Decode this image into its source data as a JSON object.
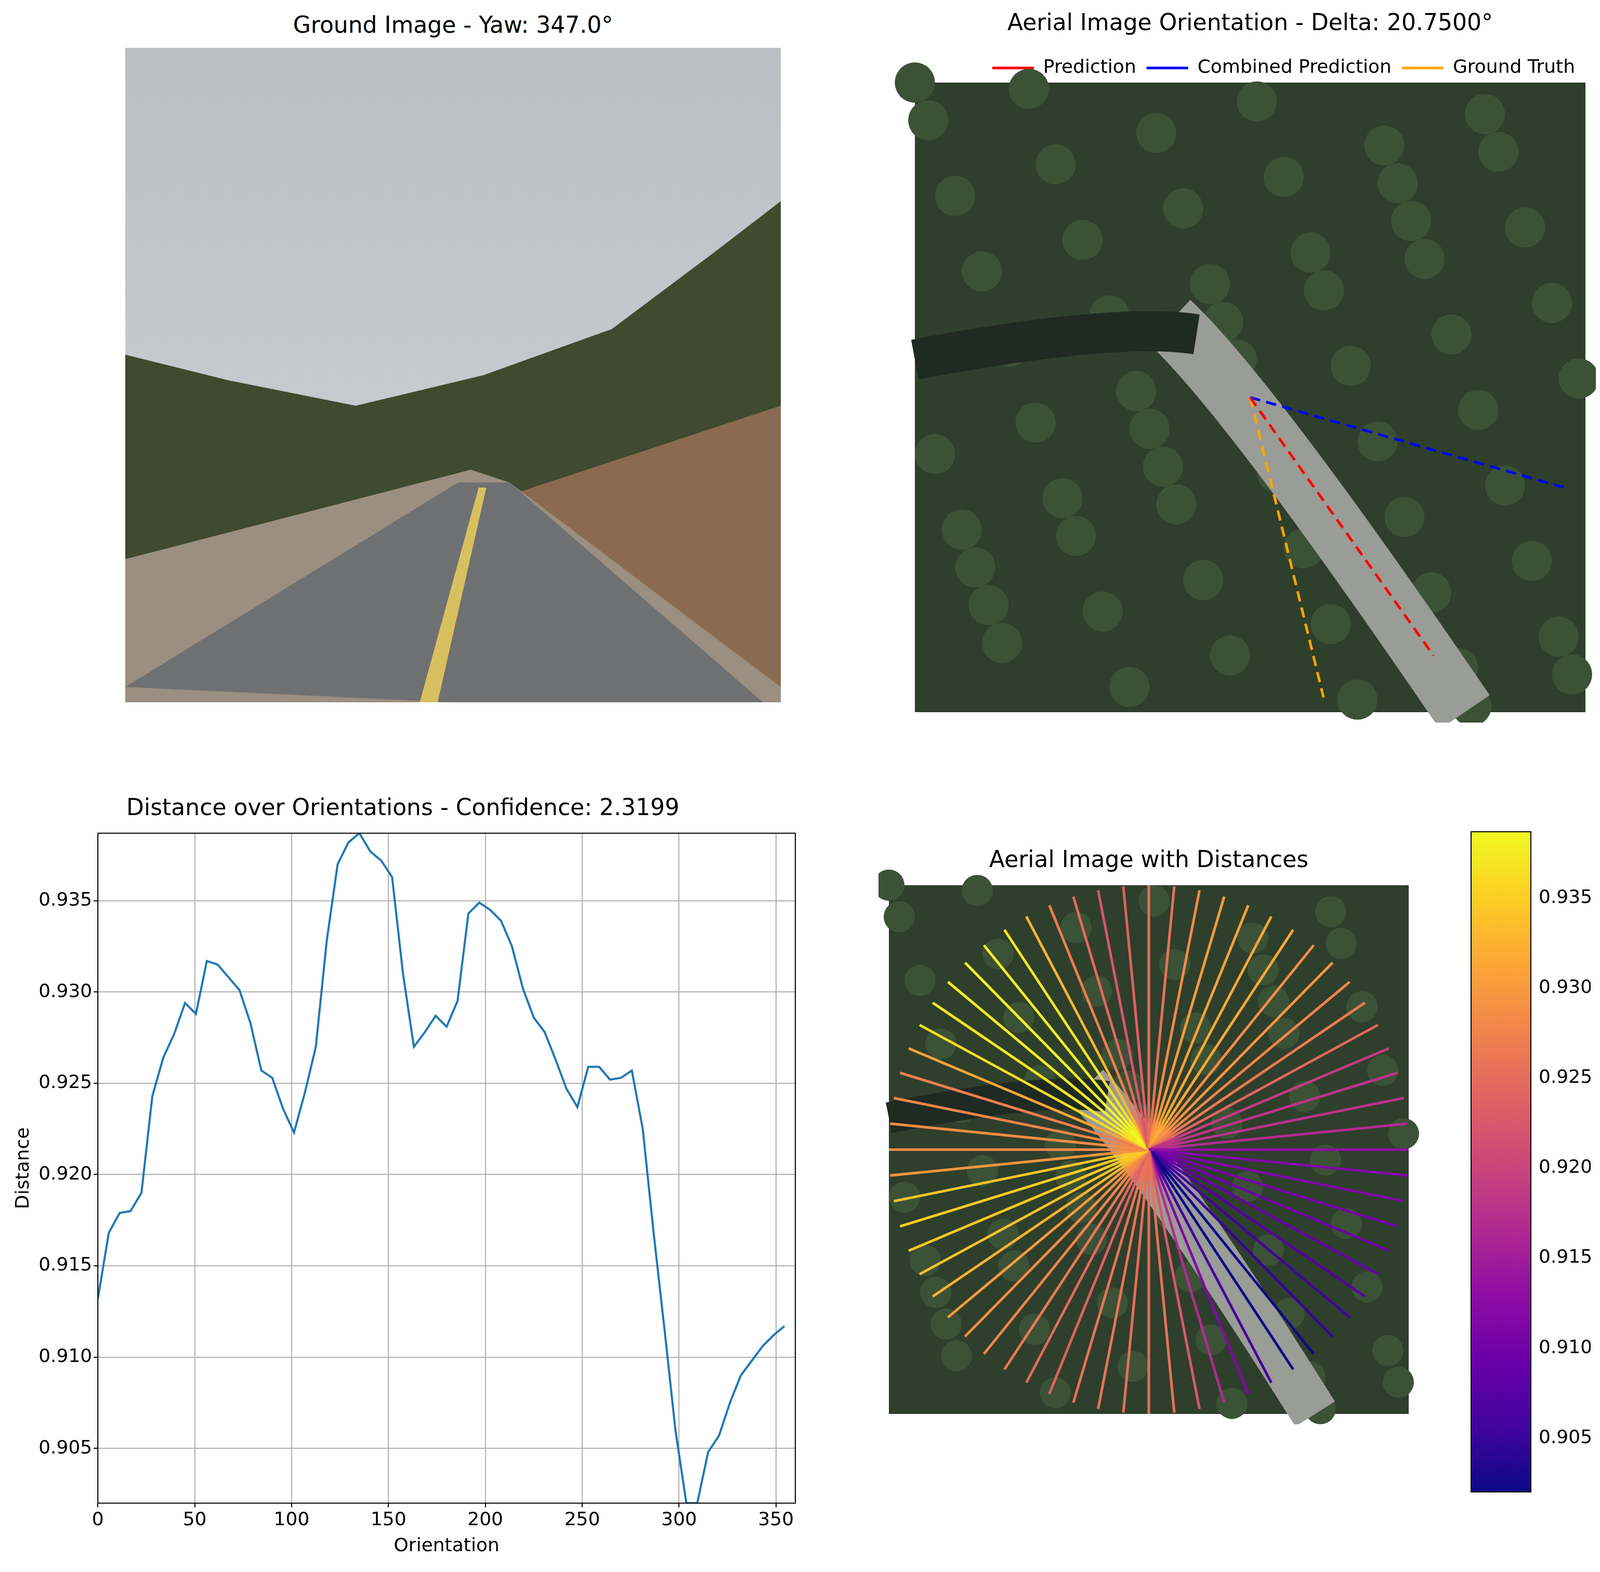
{
  "chart_data": [
    {
      "type": "image",
      "title": "Ground Image - Yaw: 347.0°"
    },
    {
      "type": "line",
      "title": "Aerial Image Orientation - Delta: 20.7500°",
      "xlim": [
        0,
        256
      ],
      "ylim": [
        256,
        0
      ],
      "tick_labels": false,
      "legend": "upper right",
      "series": [
        {
          "name": "Prediction",
          "color": "#ff0000",
          "line_style": "dashed",
          "x": [
            128,
            198
          ],
          "y": [
            128,
            233
          ]
        },
        {
          "name": "Combined Prediction",
          "color": "#0000ff",
          "line_style": "dashed",
          "x": [
            128,
            249
          ],
          "y": [
            128,
            165
          ]
        },
        {
          "name": "Ground Truth",
          "color": "#ffa500",
          "line_style": "dashed",
          "x": [
            128,
            156
          ],
          "y": [
            128,
            250
          ]
        }
      ]
    },
    {
      "type": "line",
      "title": "Distance over Orientations - Confidence: 2.3199",
      "x_label": "Orientation",
      "y_label": "Distance",
      "color": "#1f77b4",
      "grid": true,
      "x": [
        0,
        5.625,
        11.25,
        16.875,
        22.5,
        28.125,
        33.75,
        39.375,
        45,
        50.625,
        56.25,
        61.875,
        67.5,
        73.125,
        78.75,
        84.375,
        90,
        95.625,
        101.25,
        106.875,
        112.5,
        118.125,
        123.75,
        129.375,
        135,
        140.625,
        146.25,
        151.875,
        157.5,
        163.125,
        168.75,
        174.375,
        180,
        185.625,
        191.25,
        196.875,
        202.5,
        208.125,
        213.75,
        219.375,
        225,
        230.625,
        236.25,
        241.875,
        247.5,
        253.125,
        258.75,
        264.375,
        270,
        275.625,
        281.25,
        286.875,
        292.5,
        298.125,
        303.75,
        309.375,
        315,
        320.625,
        326.25,
        331.875,
        337.5,
        343.125,
        348.75,
        354.375
      ],
      "values": [
        0.9132,
        0.9168,
        0.9179,
        0.918,
        0.919,
        0.9243,
        0.9264,
        0.9277,
        0.9294,
        0.9288,
        0.9317,
        0.9315,
        0.9308,
        0.9301,
        0.9283,
        0.9257,
        0.9253,
        0.9236,
        0.9223,
        0.9245,
        0.927,
        0.9328,
        0.937,
        0.9382,
        0.9387,
        0.9377,
        0.9372,
        0.9363,
        0.931,
        0.927,
        0.9278,
        0.9287,
        0.9281,
        0.9295,
        0.9343,
        0.9349,
        0.9345,
        0.9339,
        0.9325,
        0.9302,
        0.9286,
        0.9278,
        0.9263,
        0.9247,
        0.9237,
        0.9259,
        0.9259,
        0.9252,
        0.9253,
        0.9257,
        0.9225,
        0.9168,
        0.9115,
        0.906,
        0.902,
        0.902,
        0.9048,
        0.9057,
        0.9075,
        0.909,
        0.9098,
        0.9106,
        0.9112,
        0.9117
      ],
      "xlim": [
        0,
        360
      ],
      "xticks": [
        0,
        50,
        100,
        150,
        200,
        250,
        300,
        350
      ],
      "ylim": [
        0.902,
        0.9387
      ],
      "yticks": [
        0.905,
        {
          "value": 0.91,
          "label": "0.910"
        },
        0.915,
        {
          "value": 0.92,
          "label": "0.920"
        },
        0.925,
        {
          "value": 0.93,
          "label": "0.930"
        },
        0.935
      ]
    },
    {
      "type": "radial",
      "title": "Aerial Image with Distances",
      "xlim": [
        0,
        256
      ],
      "ylim": [
        256,
        0
      ],
      "tick_labels": false,
      "color": "plasma",
      "x": [
        0,
        5.625,
        11.25,
        16.875,
        22.5,
        28.125,
        33.75,
        39.375,
        45,
        50.625,
        56.25,
        61.875,
        67.5,
        73.125,
        78.75,
        84.375,
        90,
        95.625,
        101.25,
        106.875,
        112.5,
        118.125,
        123.75,
        129.375,
        135,
        140.625,
        146.25,
        151.875,
        157.5,
        163.125,
        168.75,
        174.375,
        180,
        185.625,
        191.25,
        196.875,
        202.5,
        208.125,
        213.75,
        219.375,
        225,
        230.625,
        236.25,
        241.875,
        247.5,
        253.125,
        258.75,
        264.375,
        270,
        275.625,
        281.25,
        286.875,
        292.5,
        298.125,
        303.75,
        309.375,
        315,
        320.625,
        326.25,
        331.875,
        337.5,
        343.125,
        348.75,
        354.375
      ],
      "values": [
        0.9132,
        0.9168,
        0.9179,
        0.918,
        0.919,
        0.9243,
        0.9264,
        0.9277,
        0.9294,
        0.9288,
        0.9317,
        0.9315,
        0.9308,
        0.9301,
        0.9283,
        0.9257,
        0.9253,
        0.9236,
        0.9223,
        0.9245,
        0.927,
        0.9328,
        0.937,
        0.9382,
        0.9387,
        0.9377,
        0.9372,
        0.9363,
        0.931,
        0.927,
        0.9278,
        0.9287,
        0.9281,
        0.9295,
        0.9343,
        0.9349,
        0.9345,
        0.9339,
        0.9325,
        0.9302,
        0.9286,
        0.9278,
        0.9263,
        0.9247,
        0.9237,
        0.9259,
        0.9259,
        0.9252,
        0.9253,
        0.9257,
        0.9225,
        0.9168,
        0.9115,
        0.906,
        0.902,
        0.902,
        0.9048,
        0.9057,
        0.9075,
        0.909,
        0.9098,
        0.9106,
        0.9112,
        0.9117
      ],
      "colorbar_range": [
        0.902,
        0.9387
      ],
      "colorbar_ticks": [
        0.905,
        {
          "value": 0.91,
          "label": "0.910"
        },
        0.915,
        {
          "value": 0.92,
          "label": "0.920"
        },
        0.925,
        {
          "value": 0.93,
          "label": "0.930"
        },
        0.935
      ]
    }
  ]
}
